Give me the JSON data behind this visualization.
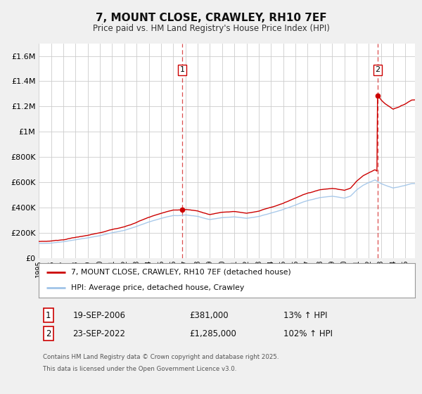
{
  "title": "7, MOUNT CLOSE, CRAWLEY, RH10 7EF",
  "subtitle": "Price paid vs. HM Land Registry's House Price Index (HPI)",
  "ylim": [
    0,
    1700000
  ],
  "xlim_start": 1995.0,
  "xlim_end": 2025.8,
  "background_color": "#f0f0f0",
  "plot_bg_color": "#ffffff",
  "grid_color": "#cccccc",
  "hpi_color": "#a0c4e8",
  "price_color": "#cc0000",
  "dashed_line_color": "#cc0000",
  "sale1_date": 2006.72,
  "sale1_price": 381000,
  "sale2_date": 2022.73,
  "sale2_price": 1285000,
  "legend_label1": "7, MOUNT CLOSE, CRAWLEY, RH10 7EF (detached house)",
  "legend_label2": "HPI: Average price, detached house, Crawley",
  "table_row1": [
    "1",
    "19-SEP-2006",
    "£381,000",
    "13% ↑ HPI"
  ],
  "table_row2": [
    "2",
    "23-SEP-2022",
    "£1,285,000",
    "102% ↑ HPI"
  ],
  "footer": "Contains HM Land Registry data © Crown copyright and database right 2025.\nThis data is licensed under the Open Government Licence v3.0.",
  "ytick_labels": [
    "£0",
    "£200K",
    "£400K",
    "£600K",
    "£800K",
    "£1M",
    "£1.2M",
    "£1.4M",
    "£1.6M"
  ],
  "ytick_values": [
    0,
    200000,
    400000,
    600000,
    800000,
    1000000,
    1200000,
    1400000,
    1600000
  ],
  "hpi_knots_x": [
    1995,
    1996,
    1997,
    1998,
    1999,
    2000,
    2001,
    2002,
    2003,
    2004,
    2005,
    2006,
    2006.72,
    2007,
    2008,
    2009,
    2010,
    2011,
    2012,
    2013,
    2014,
    2015,
    2016,
    2017,
    2018,
    2019,
    2020,
    2020.5,
    2021,
    2021.5,
    2022,
    2022.5,
    2023,
    2023.5,
    2024,
    2024.5,
    2025,
    2025.5
  ],
  "hpi_knots_y": [
    115000,
    120000,
    130000,
    145000,
    160000,
    178000,
    200000,
    220000,
    250000,
    285000,
    315000,
    335000,
    338000,
    342000,
    330000,
    305000,
    320000,
    325000,
    315000,
    330000,
    355000,
    385000,
    420000,
    455000,
    480000,
    490000,
    475000,
    490000,
    540000,
    575000,
    600000,
    620000,
    590000,
    570000,
    555000,
    565000,
    575000,
    590000
  ]
}
